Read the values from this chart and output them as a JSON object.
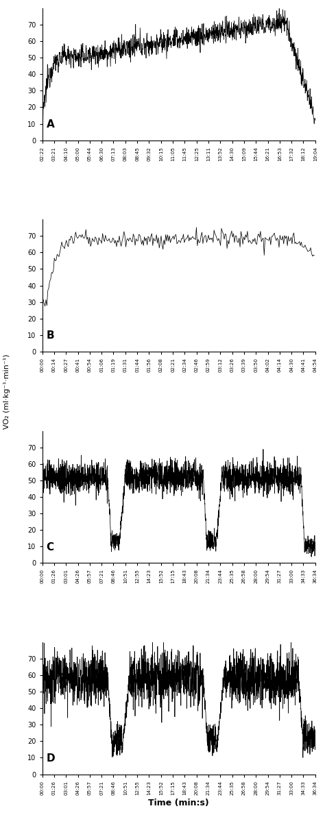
{
  "figure_size": [
    4.74,
    11.89
  ],
  "dpi": 100,
  "background_color": "#ffffff",
  "line_color": "#000000",
  "line_width": 0.55,
  "ylabel": "VO₂ (ml·kg⁻¹·min⁻¹)",
  "xlabel": "Time (min:s)",
  "panels": [
    {
      "label": "A",
      "ylim": [
        0,
        80
      ],
      "yticks": [
        0,
        10,
        20,
        30,
        40,
        50,
        60,
        70
      ],
      "duration_s": 1144,
      "xtick_labels": [
        "02:22",
        "03:21",
        "04:10",
        "05:00",
        "05:44",
        "06:30",
        "07:13",
        "08:03",
        "08:45",
        "09:32",
        "10:15",
        "11:05",
        "11:45",
        "12:25",
        "13:11",
        "13:52",
        "14:30",
        "15:09",
        "15:44",
        "16:21",
        "16:53",
        "17:32",
        "18:12",
        "19:04"
      ]
    },
    {
      "label": "B",
      "ylim": [
        0,
        80
      ],
      "yticks": [
        0,
        10,
        20,
        30,
        40,
        50,
        60,
        70
      ],
      "duration_s": 294,
      "xtick_labels": [
        "00:00",
        "00:14",
        "00:27",
        "00:41",
        "00:54",
        "01:06",
        "01:19",
        "01:31",
        "01:44",
        "01:56",
        "02:08",
        "02:21",
        "02:34",
        "02:46",
        "02:59",
        "03:12",
        "03:26",
        "03:39",
        "03:50",
        "04:02",
        "04:14",
        "04:30",
        "04:41",
        "04:54"
      ]
    },
    {
      "label": "C",
      "ylim": [
        0,
        80
      ],
      "yticks": [
        0,
        10,
        20,
        30,
        40,
        50,
        60,
        70
      ],
      "duration_s": 2194,
      "xtick_labels": [
        "00:00",
        "01:26",
        "03:01",
        "04:26",
        "05:57",
        "07:21",
        "08:46",
        "10:51",
        "12:55",
        "14:23",
        "15:52",
        "17:15",
        "18:43",
        "20:08",
        "21:34",
        "23:44",
        "25:35",
        "26:58",
        "28:00",
        "29:54",
        "31:27",
        "33:00",
        "34:33",
        "36:34"
      ]
    },
    {
      "label": "D",
      "ylim": [
        0,
        80
      ],
      "yticks": [
        0,
        10,
        20,
        30,
        40,
        50,
        60,
        70
      ],
      "duration_s": 2194,
      "xtick_labels": [
        "00:00",
        "01:26",
        "03:01",
        "04:26",
        "05:57",
        "07:21",
        "08:46",
        "10:51",
        "12:55",
        "14:23",
        "15:52",
        "17:15",
        "18:43",
        "20:08",
        "21:34",
        "23:44",
        "25:35",
        "26:58",
        "28:00",
        "29:54",
        "31:27",
        "33:00",
        "34:33",
        "36:34"
      ]
    }
  ]
}
